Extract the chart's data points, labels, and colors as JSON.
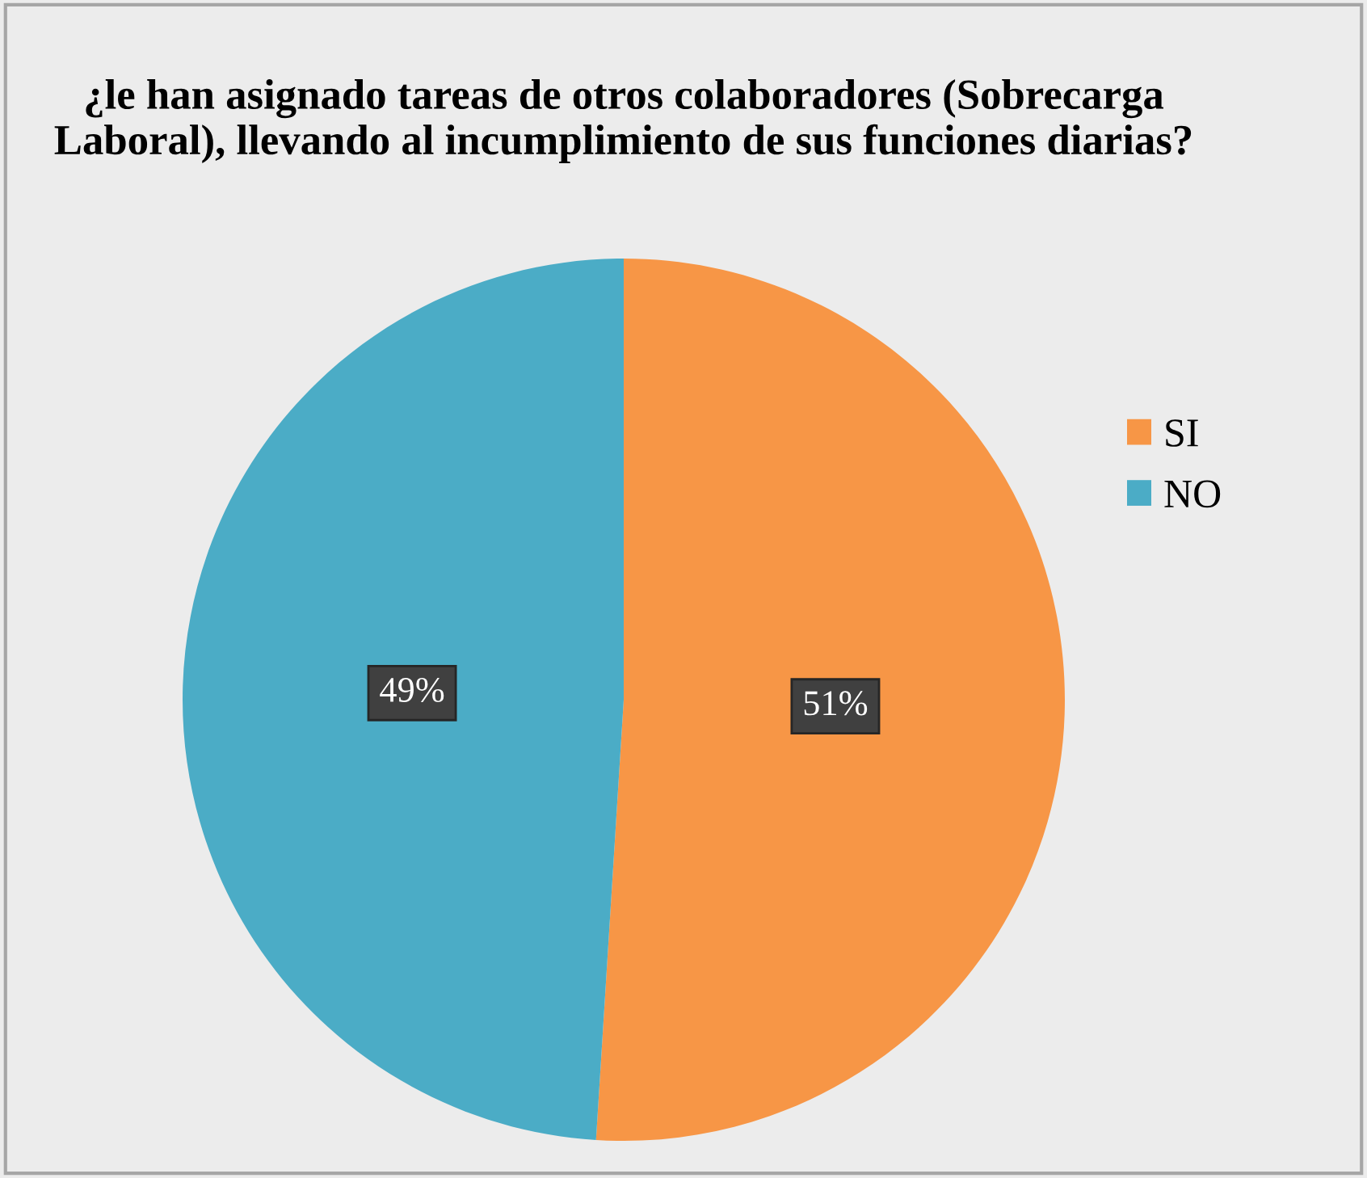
{
  "chart_data": {
    "type": "pie",
    "title": "¿le han asignado tareas de otros colaboradores (Sobrecarga Laboral), llevando al incumplimiento de sus funciones diarias?",
    "categories": [
      "SI",
      "NO"
    ],
    "values": [
      51,
      49
    ],
    "colors": [
      "#f79646",
      "#4bacc6"
    ],
    "value_labels": [
      "51%",
      "49%"
    ],
    "legend": "right"
  }
}
